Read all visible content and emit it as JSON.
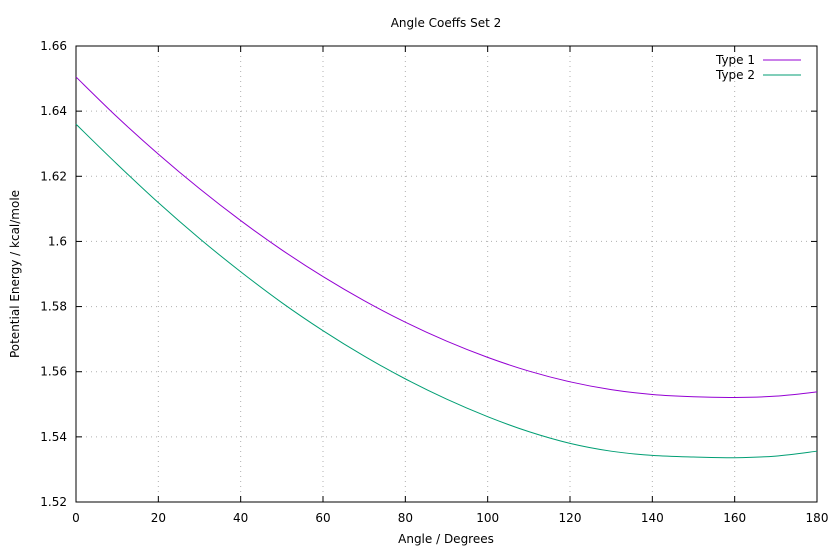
{
  "chart_data": {
    "type": "line",
    "title": "Angle Coeffs Set 2",
    "xlabel": "Angle / Degrees",
    "ylabel": "Potential Energy / kcal/mole",
    "xlim": [
      0,
      180
    ],
    "ylim": [
      1.52,
      1.66
    ],
    "x_ticks": [
      0,
      20,
      40,
      60,
      80,
      100,
      120,
      140,
      160,
      180
    ],
    "x_tick_labels": [
      "0",
      "20",
      "40",
      "60",
      "80",
      "100",
      "120",
      "140",
      "160",
      "180"
    ],
    "y_ticks": [
      1.52,
      1.54,
      1.56,
      1.58,
      1.6,
      1.62,
      1.64,
      1.66
    ],
    "y_tick_labels": [
      "1.52",
      "1.54",
      "1.56",
      "1.58",
      "1.6",
      "1.62",
      "1.64",
      "1.66"
    ],
    "grid": true,
    "legend_position": "top-right",
    "x": [
      0,
      10,
      20,
      30,
      40,
      50,
      60,
      70,
      80,
      90,
      100,
      110,
      120,
      130,
      140,
      150,
      160,
      170,
      180
    ],
    "series": [
      {
        "name": "Type 1",
        "color": "#9400d3",
        "values": [
          1.6505,
          1.6382,
          1.6268,
          1.6162,
          1.6064,
          1.5974,
          1.5892,
          1.5818,
          1.5752,
          1.5694,
          1.5644,
          1.5602,
          1.5569,
          1.5545,
          1.553,
          1.5523,
          1.5521,
          1.5525,
          1.5538
        ]
      },
      {
        "name": "Type 2",
        "color": "#009e73",
        "values": [
          1.636,
          1.6237,
          1.6119,
          1.6009,
          1.5907,
          1.5812,
          1.5726,
          1.5648,
          1.5578,
          1.5516,
          1.5462,
          1.5416,
          1.538,
          1.5356,
          1.5343,
          1.5338,
          1.5336,
          1.5341,
          1.5356
        ]
      }
    ]
  }
}
